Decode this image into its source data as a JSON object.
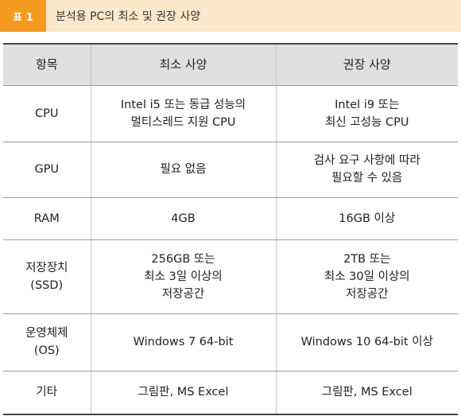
{
  "caption": {
    "number": "표 1",
    "title": "분석용 PC의 최소 및 권장 사양"
  },
  "table": {
    "headers": [
      "항목",
      "최소 사양",
      "권장 사양"
    ],
    "rows": [
      [
        "CPU",
        "Intel i5 또는 동급 성능의\n멀티스레드 지원 CPU",
        "Intel i9 또는\n최신 고성능 CPU"
      ],
      [
        "GPU",
        "필요 없음",
        "검사 요구 사항에 따라\n필요할 수 있음"
      ],
      [
        "RAM",
        "4GB",
        "16GB 이상"
      ],
      [
        "저장장치\n(SSD)",
        "256GB 또는\n최소 3일 이상의\n저장공간",
        "2TB 또는\n최소 30일 이상의\n저장공간"
      ],
      [
        "운영체제\n(OS)",
        "Windows 7 64-bit",
        "Windows 10 64-bit 이상"
      ],
      [
        "기타",
        "그림판, MS Excel",
        "그림판, MS Excel"
      ]
    ]
  },
  "colors": {
    "caption_bg": "#fde8cc",
    "caption_number_bg": "#f39a1f",
    "header_bg": "#dfe0e2"
  }
}
